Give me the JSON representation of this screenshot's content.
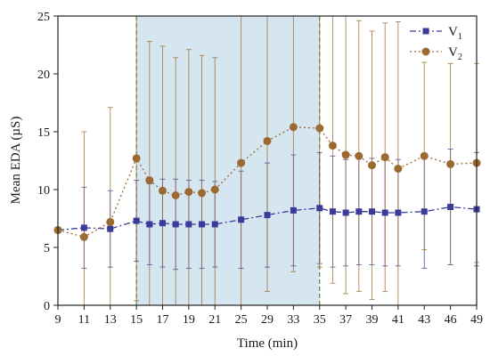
{
  "chart_data": {
    "type": "line",
    "xlabel": "Time (min)",
    "ylabel": "Mean EDA (µS)",
    "ylim": [
      0,
      25
    ],
    "x_ticks": [
      9,
      11,
      13,
      15,
      17,
      19,
      21,
      25,
      29,
      33,
      35,
      37,
      39,
      41,
      43,
      46,
      49
    ],
    "y_ticks": [
      0,
      5,
      10,
      15,
      20,
      25
    ],
    "grid": false,
    "legend_position": "top-right",
    "shaded_region": {
      "x_start": 15,
      "x_end": 35,
      "color": "#cfe2ee"
    },
    "vertical_markers": [
      15,
      35
    ],
    "series": [
      {
        "name": "V",
        "subscript": "1",
        "color": "#3a3a9a",
        "marker": "square",
        "line_style": "dash-dot",
        "x": [
          9,
          11,
          13,
          15,
          16,
          17,
          18,
          19,
          20,
          21,
          25,
          29,
          33,
          35,
          36,
          37,
          38,
          39,
          40,
          41,
          43,
          46,
          49
        ],
        "y": [
          6.5,
          6.7,
          6.6,
          7.3,
          7.0,
          7.1,
          7.0,
          7.0,
          7.0,
          7.0,
          7.4,
          7.8,
          8.2,
          8.4,
          8.1,
          8.0,
          8.1,
          8.1,
          8.0,
          8.0,
          8.1,
          8.5,
          8.3
        ],
        "err": [
          0,
          3.5,
          3.3,
          3.5,
          3.5,
          3.8,
          3.9,
          3.8,
          3.8,
          3.7,
          4.2,
          4.5,
          4.8,
          4.8,
          4.8,
          4.6,
          4.6,
          4.6,
          4.6,
          4.6,
          4.9,
          5.0,
          4.9
        ]
      },
      {
        "name": "V",
        "subscript": "2",
        "color": "#9a6a30",
        "marker": "circle",
        "line_style": "dotted",
        "x": [
          9,
          11,
          13,
          15,
          16,
          17,
          18,
          19,
          20,
          21,
          25,
          29,
          33,
          35,
          36,
          37,
          38,
          39,
          40,
          41,
          43,
          46,
          49
        ],
        "y": [
          6.5,
          5.9,
          7.2,
          12.7,
          10.8,
          9.9,
          9.5,
          9.8,
          9.7,
          10.0,
          12.3,
          14.2,
          15.4,
          15.3,
          13.8,
          13.0,
          12.9,
          12.1,
          12.8,
          11.8,
          12.9,
          12.2,
          12.3
        ],
        "err": [
          0,
          9.1,
          9.9,
          12.3,
          12.0,
          12.5,
          11.9,
          12.3,
          11.9,
          11.4,
          12.7,
          13.0,
          12.5,
          12.0,
          11.9,
          12.0,
          11.7,
          11.6,
          11.6,
          12.7,
          8.1,
          8.7,
          8.6
        ]
      }
    ]
  }
}
